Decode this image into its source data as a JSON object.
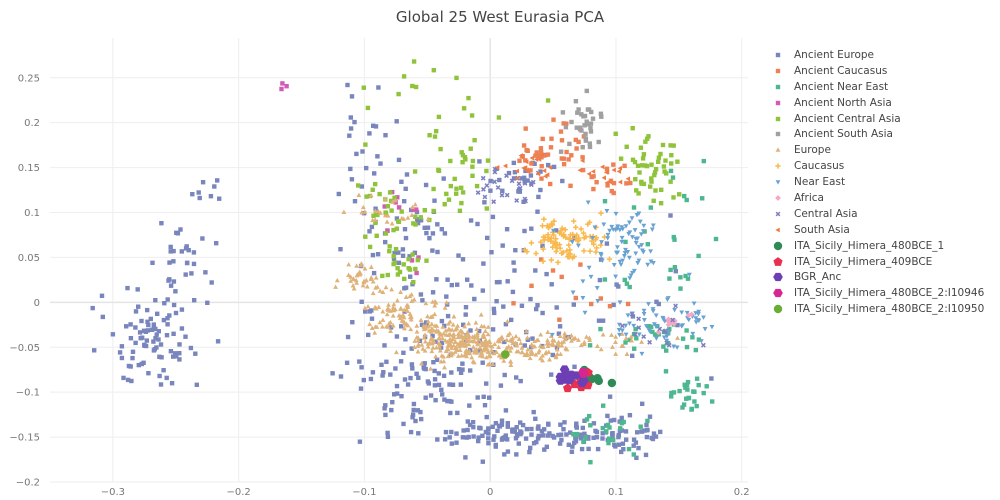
{
  "chart_data": {
    "type": "scatter",
    "title": "Global 25 West Eurasia PCA",
    "xlabel": "",
    "ylabel": "",
    "xlim": [
      -0.35,
      0.205
    ],
    "ylim": [
      -0.2,
      0.272
    ],
    "x_ticks": [
      -0.3,
      -0.2,
      -0.1,
      0,
      0.1,
      0.2
    ],
    "x_tick_labels": [
      "−0.3",
      "−0.2",
      "−0.1",
      "0",
      "0.1",
      "0.2"
    ],
    "y_ticks": [
      -0.2,
      -0.15,
      -0.1,
      -0.05,
      0,
      0.05,
      0.1,
      0.15,
      0.2,
      0.25
    ],
    "y_tick_labels": [
      "−0.2",
      "−0.15",
      "−0.1",
      "−0.05",
      "0",
      "0.05",
      "0.1",
      "0.15",
      "0.2",
      "0.25"
    ],
    "grid": true,
    "legend_position": "right",
    "series": [
      {
        "name": "Ancient Europe",
        "marker": "square",
        "color": "#7985bd",
        "clusters": [
          [
            -0.27,
            -0.04,
            0.02,
            0.025,
            90
          ],
          [
            -0.245,
            0.04,
            0.012,
            0.02,
            30
          ],
          [
            -0.22,
            0.125,
            0.01,
            0.01,
            8
          ],
          [
            -0.1,
            0.2,
            0.012,
            0.025,
            20
          ],
          [
            -0.05,
            -0.1,
            0.03,
            0.03,
            80
          ],
          [
            0.01,
            -0.148,
            0.02,
            0.01,
            70
          ],
          [
            0.08,
            -0.148,
            0.03,
            0.01,
            100
          ],
          [
            0.0,
            0.0,
            0.07,
            0.07,
            110
          ],
          [
            0.03,
            0.14,
            0.015,
            0.015,
            25
          ],
          [
            -0.07,
            0.07,
            0.02,
            0.03,
            40
          ],
          [
            -0.03,
            -0.03,
            0.04,
            0.04,
            60
          ]
        ]
      },
      {
        "name": "Ancient Caucasus",
        "marker": "square",
        "color": "#ee8055",
        "clusters": [
          [
            0.05,
            0.17,
            0.012,
            0.015,
            40
          ],
          [
            0.09,
            0.14,
            0.012,
            0.01,
            15
          ],
          [
            0.06,
            0.01,
            0.02,
            0.02,
            12
          ]
        ]
      },
      {
        "name": "Ancient Near East",
        "marker": "square",
        "color": "#4db88f",
        "clusters": [
          [
            0.16,
            -0.1,
            0.008,
            0.01,
            25
          ],
          [
            0.09,
            -0.14,
            0.02,
            0.015,
            25
          ],
          [
            0.13,
            -0.04,
            0.02,
            0.01,
            25
          ],
          [
            0.15,
            0.04,
            0.02,
            0.06,
            20
          ],
          [
            0.12,
            0.1,
            0.02,
            0.05,
            10
          ]
        ]
      },
      {
        "name": "Ancient North Asia",
        "marker": "square",
        "color": "#d45bb5",
        "clusters": [
          [
            -0.165,
            0.24,
            0.003,
            0.005,
            3
          ],
          [
            -0.08,
            0.1,
            0.01,
            0.02,
            8
          ],
          [
            -0.06,
            0.04,
            0.005,
            0.01,
            3
          ]
        ]
      },
      {
        "name": "Ancient Central Asia",
        "marker": "square",
        "color": "#8fc43a",
        "clusters": [
          [
            0.13,
            0.15,
            0.012,
            0.02,
            50
          ],
          [
            -0.03,
            0.14,
            0.015,
            0.03,
            40
          ],
          [
            -0.08,
            0.1,
            0.012,
            0.02,
            30
          ],
          [
            -0.07,
            0.04,
            0.008,
            0.01,
            20
          ],
          [
            -0.05,
            0.22,
            0.04,
            0.02,
            15
          ]
        ]
      },
      {
        "name": "Ancient South Asia",
        "marker": "square",
        "color": "#a0a0a0",
        "clusters": [
          [
            0.075,
            0.2,
            0.008,
            0.015,
            35
          ]
        ]
      },
      {
        "name": "Europe",
        "marker": "triangle-up",
        "color": "#dfb27a",
        "clusters": [
          [
            -0.1,
            0.025,
            0.01,
            0.008,
            40
          ],
          [
            -0.07,
            -0.01,
            0.015,
            0.01,
            80
          ],
          [
            -0.03,
            -0.04,
            0.02,
            0.01,
            150
          ],
          [
            0.0,
            -0.055,
            0.025,
            0.008,
            120
          ],
          [
            0.05,
            -0.045,
            0.04,
            0.006,
            100
          ],
          [
            -0.08,
            0.1,
            0.015,
            0.01,
            25
          ]
        ]
      },
      {
        "name": "Caucasus",
        "marker": "cross",
        "color": "#f9b94f",
        "clusters": [
          [
            0.06,
            0.07,
            0.015,
            0.012,
            90
          ]
        ]
      },
      {
        "name": "Near East",
        "marker": "triangle-down",
        "color": "#6aa2d1",
        "clusters": [
          [
            0.11,
            0.07,
            0.012,
            0.02,
            60
          ],
          [
            0.14,
            -0.02,
            0.02,
            0.015,
            50
          ],
          [
            0.1,
            0.01,
            0.03,
            0.04,
            30
          ]
        ]
      },
      {
        "name": "Africa",
        "marker": "diamond",
        "color": "#f4a7c7",
        "clusters": [
          [
            0.145,
            -0.022,
            0.008,
            0.005,
            12
          ]
        ]
      },
      {
        "name": "Central Asia",
        "marker": "x",
        "color": "#7b7fbf",
        "clusters": [
          [
            0.02,
            0.13,
            0.015,
            0.01,
            25
          ],
          [
            0.13,
            -0.03,
            0.015,
            0.01,
            15
          ]
        ]
      },
      {
        "name": "South Asia",
        "marker": "triangle-left",
        "color": "#ee7b45",
        "clusters": [
          [
            0.03,
            0.15,
            0.015,
            0.008,
            20
          ],
          [
            0.09,
            0.145,
            0.01,
            0.008,
            15
          ]
        ]
      },
      {
        "name": "ITA_Sicily_Himera_480BCE_1",
        "marker": "circle",
        "color": "#2e8b57",
        "clusters": [
          [
            0.08,
            -0.08,
            0.008,
            0.008,
            8
          ]
        ]
      },
      {
        "name": "ITA_Sicily_Himera_409BCE",
        "marker": "pentagon",
        "color": "#e8304f",
        "clusters": [
          [
            0.072,
            -0.088,
            0.006,
            0.006,
            6
          ]
        ]
      },
      {
        "name": "BGR_Anc",
        "marker": "hexagon",
        "color": "#6c3fb5",
        "clusters": [
          [
            0.066,
            -0.083,
            0.006,
            0.005,
            12
          ]
        ]
      },
      {
        "name": "ITA_Sicily_Himera_480BCE_2:I10946",
        "marker": "hexagon",
        "color": "#d6268f",
        "clusters": [
          [
            0.071,
            -0.078,
            0.003,
            0.003,
            2
          ]
        ]
      },
      {
        "name": "ITA_Sicily_Himera_480BCE_2:I10950",
        "marker": "circle",
        "color": "#6aad33",
        "clusters": [
          [
            0.012,
            -0.058,
            0.0,
            0.0,
            1
          ]
        ]
      }
    ]
  }
}
